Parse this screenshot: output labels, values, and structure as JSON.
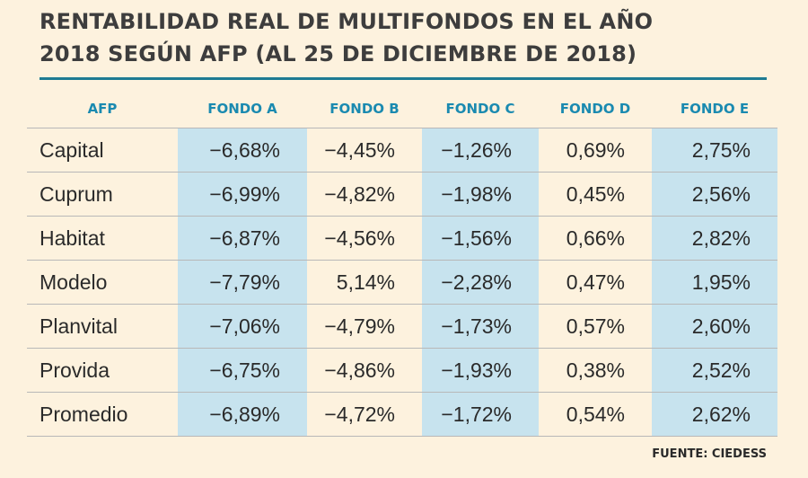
{
  "chart_data": {
    "type": "table",
    "title_line1": "RENTABILIDAD REAL DE MULTIFONDOS EN EL AÑO",
    "title_line2": "2018 SEGÚN AFP (AL 25 DE DICIEMBRE DE 2018)",
    "columns": [
      "AFP",
      "FONDO A",
      "FONDO B",
      "FONDO C",
      "FONDO D",
      "FONDO E"
    ],
    "rows": [
      [
        "Capital",
        "-6,68%",
        "-4,45%",
        "-1,26%",
        "0,69%",
        "2,75%"
      ],
      [
        "Cuprum",
        "-6,99%",
        "-4,82%",
        "-1,98%",
        "0,45%",
        "2,56%"
      ],
      [
        "Habitat",
        "-6,87%",
        "-4,56%",
        "-1,56%",
        "0,66%",
        "2,82%"
      ],
      [
        "Modelo",
        "-7,79%",
        "5,14%",
        "-2,28%",
        "0,47%",
        "1,95%"
      ],
      [
        "Planvital",
        "-7,06%",
        "-4,79%",
        "-1,73%",
        "0,57%",
        "2,60%"
      ],
      [
        "Provida",
        "-6,75%",
        "-4,86%",
        "-1,93%",
        "0,38%",
        "2,52%"
      ],
      [
        "Promedio",
        "-6,89%",
        "-4,72%",
        "-1,72%",
        "0,54%",
        "2,62%"
      ]
    ],
    "source": "FUENTE: CIEDESS",
    "shaded_columns": [
      1,
      3,
      5
    ]
  },
  "colors": {
    "background": "#fdf2de",
    "accent": "#1a8ab0",
    "rule": "#1e7b93",
    "shade": "#c7e3ee",
    "text": "#2a2a2a"
  }
}
